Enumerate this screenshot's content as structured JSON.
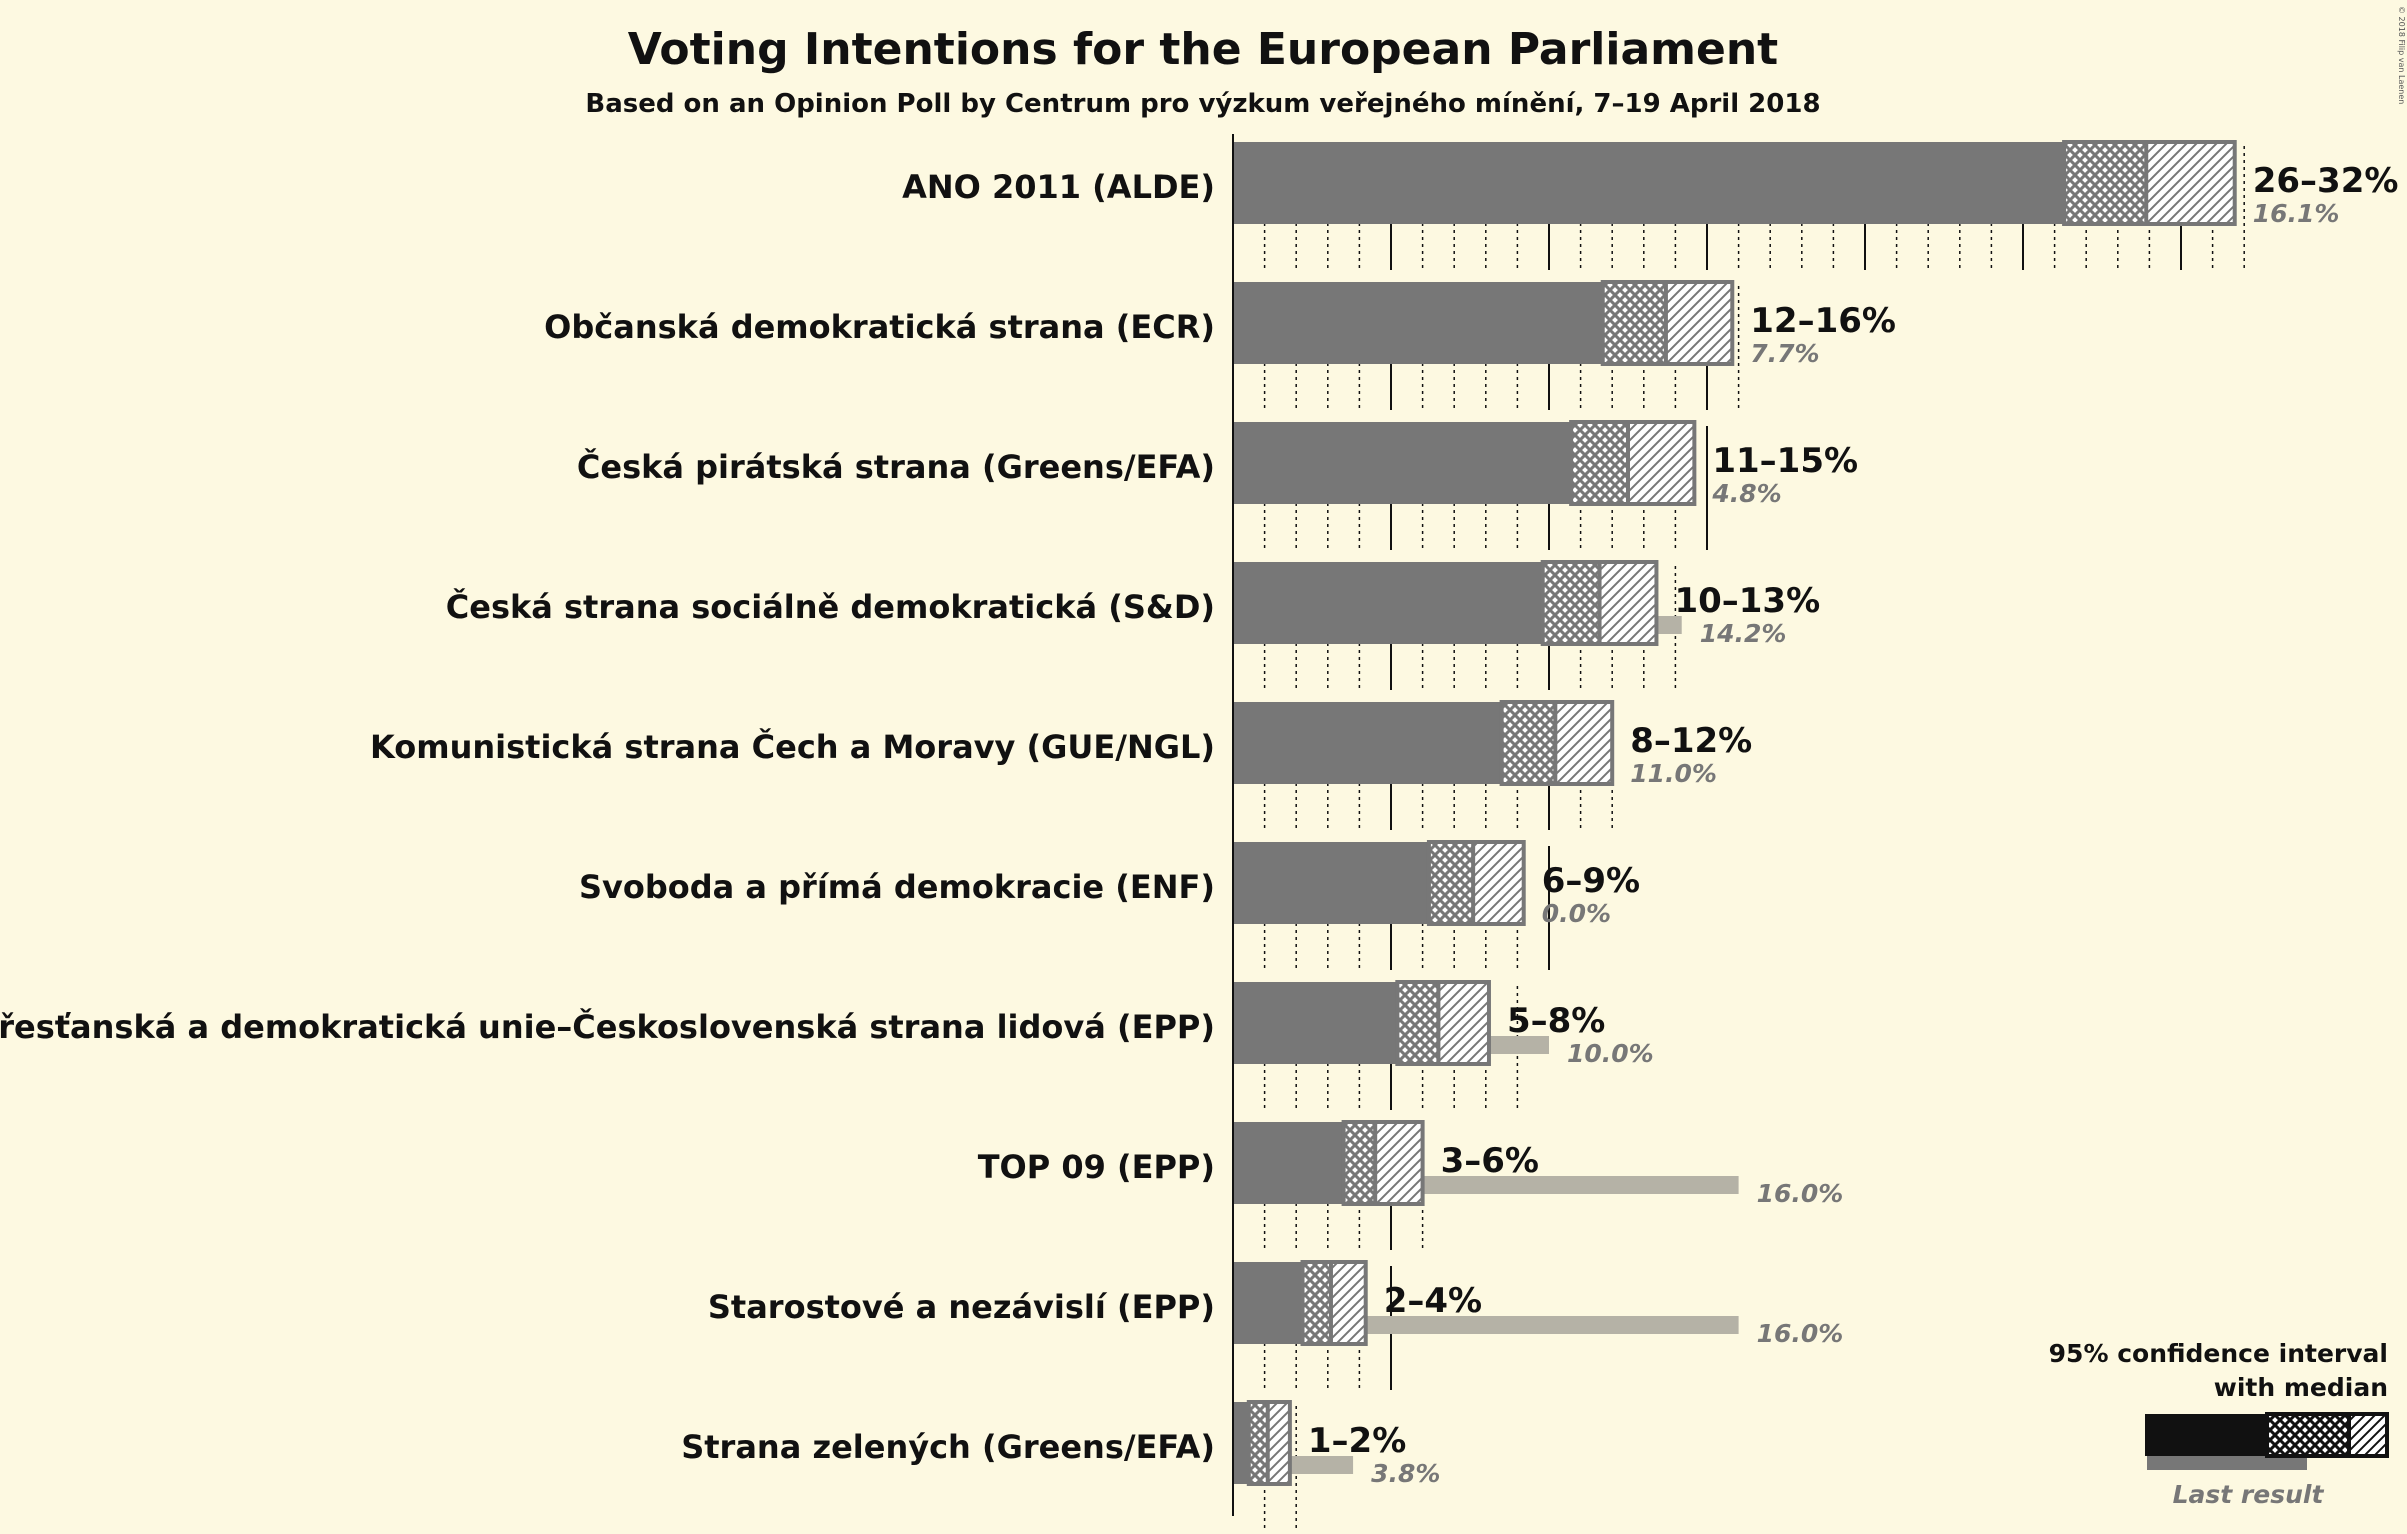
{
  "title": "Voting Intentions for the European Parliament",
  "subtitle": "Based on an Opinion Poll by Centrum pro výzkum veřejného mínění, 7–19 April 2018",
  "copyright": "© 2018 Filip van Laenen",
  "legend": {
    "ci_label_line1": "95% confidence interval",
    "ci_label_line2": "with median",
    "last_result_label": "Last result"
  },
  "colors": {
    "background": "#fdf9e1",
    "bar": "#777777",
    "last_result": "#b5b2a6",
    "legend_bar": "#111111",
    "legend_last": "#777777"
  },
  "chart_data": {
    "type": "bar",
    "orientation": "horizontal",
    "title": "Voting Intentions for the European Parliament",
    "subtitle": "Based on an Opinion Poll by Centrum pro výzkum veřejného mínění, 7–19 April 2018",
    "x_unit": "%",
    "xlim": [
      0,
      32
    ],
    "major_gridlines_every": 5,
    "minor_gridlines_every": 1,
    "legend_placement": "bottom-right",
    "categories": [
      "ANO 2011 (ALDE)",
      "Občanská demokratická strana (ECR)",
      "Česká pirátská strana (Greens/EFA)",
      "Česká strana sociálně demokratická (S&D)",
      "Komunistická strana Čech a Moravy (GUE/NGL)",
      "Svoboda a přímá demokracie (ENF)",
      "Křesťanská a demokratická unie–Československá strana lidová (EPP)",
      "TOP 09 (EPP)",
      "Starostové a nezávislí (EPP)",
      "Strana zelených (Greens/EFA)"
    ],
    "series": [
      {
        "name": "95% confidence interval with median",
        "ci_low": [
          26.3,
          11.7,
          10.7,
          9.8,
          8.5,
          6.2,
          5.2,
          3.5,
          2.2,
          0.5
        ],
        "median": [
          28.9,
          13.7,
          12.5,
          11.6,
          10.2,
          7.6,
          6.5,
          4.5,
          3.1,
          1.1
        ],
        "ci_high": [
          31.7,
          15.8,
          14.6,
          13.4,
          12.0,
          9.2,
          8.1,
          6.0,
          4.2,
          1.8
        ],
        "range_labels": [
          "26–32%",
          "12–16%",
          "11–15%",
          "10–13%",
          "8–12%",
          "6–9%",
          "5–8%",
          "3–6%",
          "2–4%",
          "1–2%"
        ]
      },
      {
        "name": "Last result",
        "values": [
          16.1,
          7.7,
          4.8,
          14.2,
          11.0,
          0.0,
          10.0,
          16.0,
          16.0,
          3.8
        ],
        "labels": [
          "16.1%",
          "7.7%",
          "4.8%",
          "14.2%",
          "11.0%",
          "0.0%",
          "10.0%",
          "16.0%",
          "16.0%",
          "3.8%"
        ]
      }
    ]
  }
}
